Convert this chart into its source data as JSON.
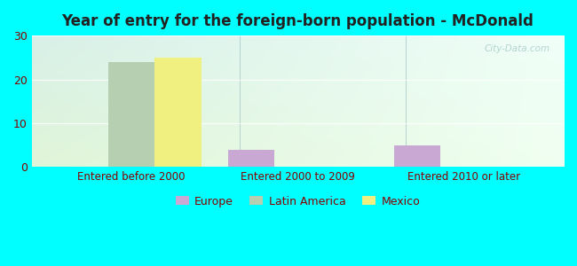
{
  "title": "Year of entry for the foreign-born population - McDonald",
  "categories": [
    "Entered before 2000",
    "Entered 2000 to 2009",
    "Entered 2010 or later"
  ],
  "series": {
    "Europe": [
      0,
      4,
      5
    ],
    "Latin America": [
      24,
      0,
      0
    ],
    "Mexico": [
      25,
      0,
      0
    ]
  },
  "colors": {
    "Europe": "#c9a8d4",
    "Latin America": "#b5cfb0",
    "Mexico": "#f0f080"
  },
  "ylim": [
    0,
    30
  ],
  "yticks": [
    0,
    10,
    20,
    30
  ],
  "bar_width": 0.28,
  "figure_bg": "#00ffff",
  "plot_bg_colors": [
    "#e8f5e0",
    "#f0faf5",
    "#e0f5ee"
  ],
  "title_color": "#222222",
  "label_color": "#880000",
  "watermark": "City-Data.com",
  "watermark_color": "#aacccc",
  "figsize": [
    6.5,
    3.0
  ],
  "dpi": 100
}
